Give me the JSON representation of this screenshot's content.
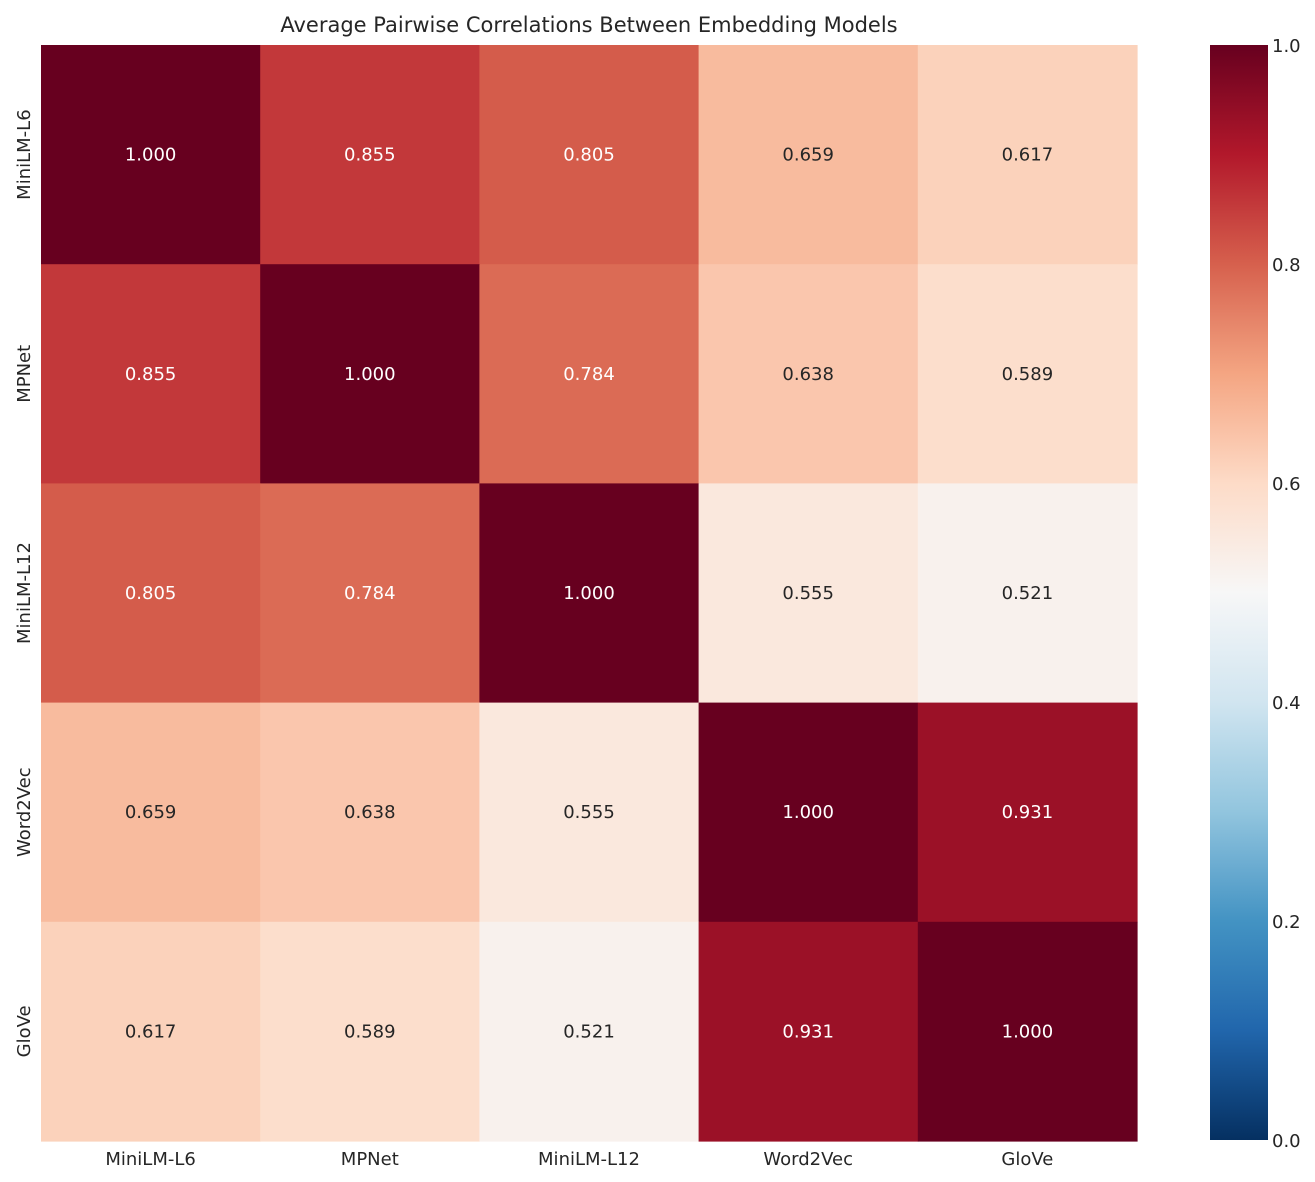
{
  "chart_data": {
    "type": "heatmap",
    "title": "Average Pairwise Correlations Between Embedding Models",
    "x_labels": [
      "MiniLM-L6",
      "MPNet",
      "MiniLM-L12",
      "Word2Vec",
      "GloVe"
    ],
    "y_labels": [
      "MiniLM-L6",
      "MPNet",
      "MiniLM-L12",
      "Word2Vec",
      "GloVe"
    ],
    "values": [
      [
        1.0,
        0.855,
        0.805,
        0.659,
        0.617
      ],
      [
        0.855,
        1.0,
        0.784,
        0.638,
        0.589
      ],
      [
        0.805,
        0.784,
        1.0,
        0.555,
        0.521
      ],
      [
        0.659,
        0.638,
        0.555,
        1.0,
        0.931
      ],
      [
        0.617,
        0.589,
        0.521,
        0.931,
        1.0
      ]
    ],
    "value_format": "3 decimals",
    "colormap": "RdBu_r",
    "vmin": 0.0,
    "vmax": 1.0,
    "colorbar": {
      "ticks": [
        "0.0",
        "0.2",
        "0.4",
        "0.6",
        "0.8",
        "1.0"
      ],
      "tick_values": [
        0.0,
        0.2,
        0.4,
        0.6,
        0.8,
        1.0
      ],
      "placement": "right"
    },
    "grid": false
  },
  "colors": {
    "background": "#ffffff",
    "text_dark": "#262626",
    "text_light": "#ffffff"
  }
}
